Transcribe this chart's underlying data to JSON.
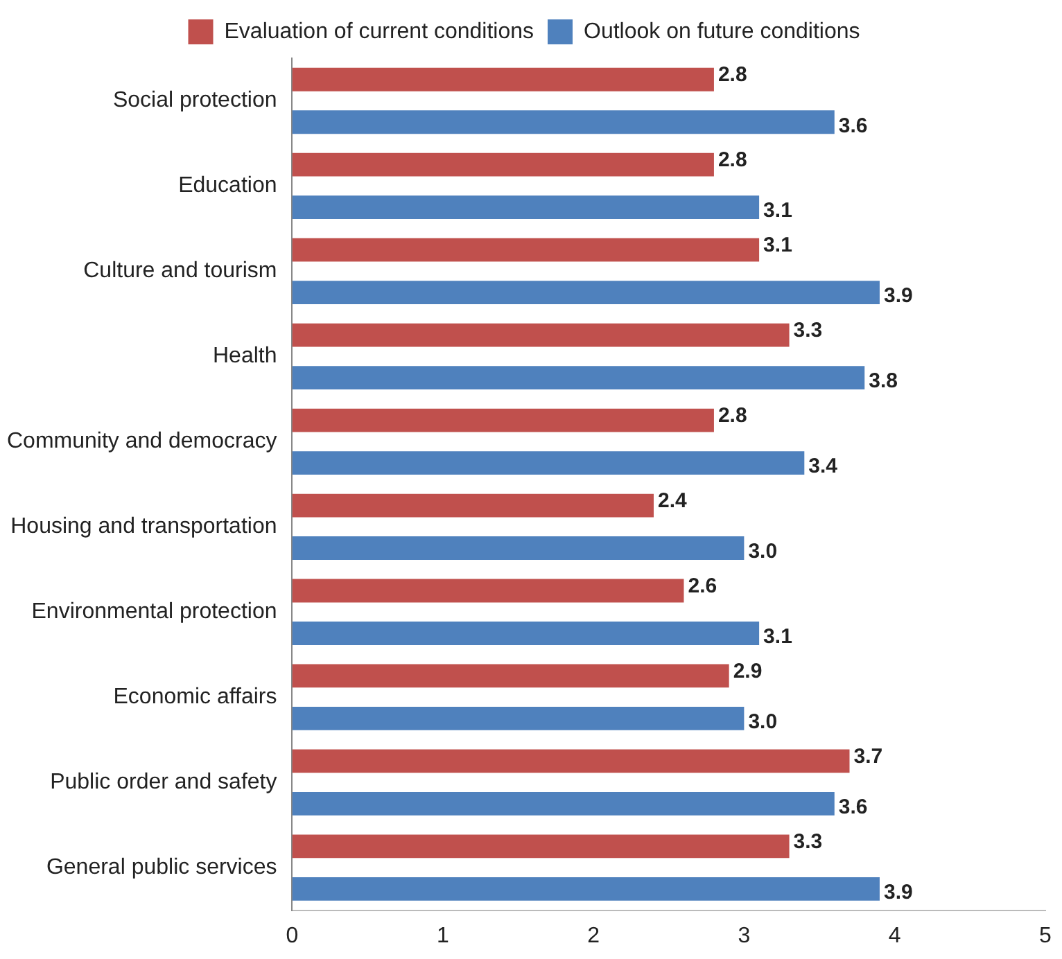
{
  "chart_data": {
    "type": "bar",
    "orientation": "horizontal",
    "categories": [
      "Social protection",
      "Education",
      "Culture and tourism",
      "Health",
      "Community and democracy",
      "Housing and transportation",
      "Environmental protection",
      "Economic affairs",
      "Public order and safety",
      "General public services"
    ],
    "series": [
      {
        "name": "Evaluation of current conditions",
        "color": "#c0504d",
        "values": [
          2.8,
          2.8,
          3.1,
          3.3,
          2.8,
          2.4,
          2.6,
          2.9,
          3.7,
          3.3
        ],
        "value_labels": [
          "2.8",
          "2.8",
          "3.1",
          "3.3",
          "2.8",
          "2.4",
          "2.6",
          "2.9",
          "3.7",
          "3.3"
        ]
      },
      {
        "name": "Outlook on future conditions",
        "color": "#4f81bd",
        "values": [
          3.6,
          3.1,
          3.9,
          3.8,
          3.4,
          3.0,
          3.1,
          3.0,
          3.6,
          3.9
        ],
        "value_labels": [
          "3.6",
          "3.1",
          "3.9",
          "3.8",
          "3.4",
          "3.0",
          "3.1",
          "3.0",
          "3.6",
          "3.9"
        ]
      }
    ],
    "xlim": [
      0,
      5
    ],
    "xticks": [
      0,
      1,
      2,
      3,
      4,
      5
    ],
    "grid": false,
    "legend": "top"
  }
}
